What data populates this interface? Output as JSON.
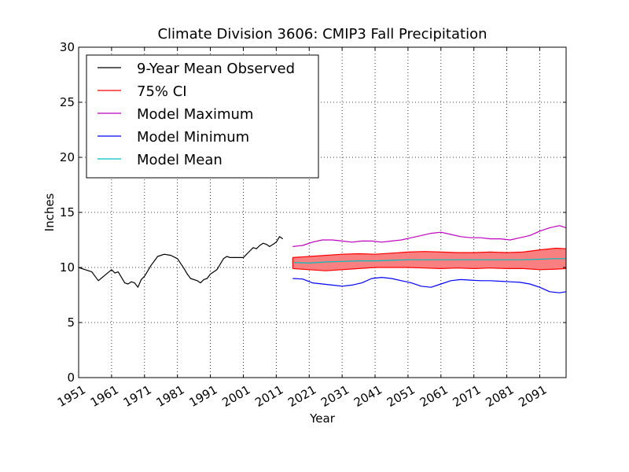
{
  "chart_data": {
    "type": "line",
    "title": "Climate Division 3606: CMIP3 Fall Precipitation",
    "xlabel": "Year",
    "ylabel": "Inches",
    "xlim": [
      1951,
      2099
    ],
    "ylim": [
      0,
      30
    ],
    "x_ticks": [
      1951,
      1961,
      1971,
      1981,
      1991,
      2001,
      2011,
      2021,
      2031,
      2041,
      2051,
      2061,
      2071,
      2081,
      2091
    ],
    "x_tick_labels": [
      "1951",
      "1961",
      "1971",
      "1981",
      "1991",
      "2001",
      "2011",
      "2021",
      "2031",
      "2041",
      "2051",
      "2061",
      "2071",
      "2081",
      "2091"
    ],
    "y_ticks": [
      0,
      5,
      10,
      15,
      20,
      25,
      30
    ],
    "y_tick_labels": [
      "0",
      "5",
      "10",
      "15",
      "20",
      "25",
      "30"
    ],
    "grid": true,
    "legend_position": "upper-left",
    "colors": {
      "observed": "#000000",
      "ci": "#ff0000",
      "ci_fill": "#f88080",
      "max": "#bf00bf",
      "min": "#0000ff",
      "mean": "#00bfbf"
    },
    "legend": [
      {
        "key": "observed",
        "label": "9-Year Mean Observed"
      },
      {
        "key": "ci",
        "label": "75% CI"
      },
      {
        "key": "max",
        "label": "Model Maximum"
      },
      {
        "key": "min",
        "label": "Model Minimum"
      },
      {
        "key": "mean",
        "label": "Model Mean"
      }
    ],
    "series": [
      {
        "key": "observed",
        "name": "9-Year Mean Observed",
        "x": [
          1951,
          1953,
          1955,
          1956,
          1957,
          1959,
          1961,
          1962,
          1963,
          1965,
          1966,
          1967,
          1968,
          1969,
          1970,
          1971,
          1973,
          1974,
          1975,
          1977,
          1979,
          1981,
          1983,
          1984,
          1985,
          1987,
          1988,
          1989,
          1990,
          1991,
          1992,
          1993,
          1994,
          1995,
          1996,
          1997,
          1999,
          2001,
          2003,
          2004,
          2005,
          2006,
          2007,
          2008,
          2009,
          2010,
          2011,
          2012,
          2013
        ],
        "y": [
          10.0,
          9.8,
          9.6,
          9.2,
          8.8,
          9.3,
          9.8,
          9.5,
          9.6,
          8.6,
          8.5,
          8.7,
          8.6,
          8.2,
          8.9,
          9.2,
          10.2,
          10.6,
          11.0,
          11.2,
          11.1,
          10.8,
          9.9,
          9.4,
          9.0,
          8.8,
          8.6,
          8.9,
          9.0,
          9.4,
          9.6,
          9.8,
          10.3,
          10.8,
          11.0,
          10.9,
          10.9,
          10.9,
          11.5,
          11.8,
          11.7,
          12.0,
          12.2,
          12.1,
          11.9,
          12.1,
          12.3,
          12.8,
          12.6
        ]
      },
      {
        "key": "ci_upper",
        "name": "75% CI",
        "x": [
          2016,
          2021,
          2026,
          2031,
          2036,
          2041,
          2046,
          2051,
          2056,
          2061,
          2066,
          2071,
          2076,
          2081,
          2086,
          2091,
          2096,
          2099
        ],
        "y": [
          10.9,
          11.0,
          11.1,
          11.2,
          11.25,
          11.2,
          11.3,
          11.4,
          11.45,
          11.4,
          11.35,
          11.35,
          11.4,
          11.35,
          11.4,
          11.6,
          11.75,
          11.7
        ]
      },
      {
        "key": "ci_lower",
        "name": "75% CI",
        "x": [
          2016,
          2021,
          2026,
          2031,
          2036,
          2041,
          2046,
          2051,
          2056,
          2061,
          2066,
          2071,
          2076,
          2081,
          2086,
          2091,
          2096,
          2099
        ],
        "y": [
          9.9,
          9.8,
          9.7,
          9.8,
          9.9,
          10.0,
          10.0,
          10.0,
          9.95,
          9.9,
          9.95,
          9.9,
          9.95,
          9.9,
          9.9,
          9.8,
          9.85,
          9.9
        ]
      },
      {
        "key": "max",
        "name": "Model Maximum",
        "x": [
          2016,
          2019,
          2022,
          2025,
          2028,
          2031,
          2034,
          2037,
          2040,
          2043,
          2046,
          2049,
          2052,
          2055,
          2058,
          2061,
          2064,
          2067,
          2070,
          2073,
          2076,
          2079,
          2082,
          2085,
          2088,
          2091,
          2094,
          2097,
          2099
        ],
        "y": [
          11.9,
          12.0,
          12.3,
          12.5,
          12.5,
          12.4,
          12.3,
          12.4,
          12.4,
          12.3,
          12.4,
          12.5,
          12.7,
          12.9,
          13.1,
          13.2,
          13.0,
          12.8,
          12.7,
          12.7,
          12.6,
          12.6,
          12.5,
          12.7,
          12.9,
          13.3,
          13.6,
          13.8,
          13.6
        ]
      },
      {
        "key": "min",
        "name": "Model Minimum",
        "x": [
          2016,
          2019,
          2022,
          2025,
          2028,
          2031,
          2034,
          2037,
          2040,
          2043,
          2046,
          2049,
          2052,
          2055,
          2058,
          2061,
          2064,
          2067,
          2070,
          2073,
          2076,
          2079,
          2082,
          2085,
          2088,
          2091,
          2094,
          2097,
          2099
        ],
        "y": [
          9.0,
          8.95,
          8.6,
          8.5,
          8.4,
          8.3,
          8.4,
          8.6,
          9.0,
          9.1,
          9.0,
          8.8,
          8.6,
          8.3,
          8.2,
          8.5,
          8.8,
          8.9,
          8.85,
          8.8,
          8.8,
          8.75,
          8.7,
          8.65,
          8.5,
          8.2,
          7.8,
          7.7,
          7.8
        ]
      },
      {
        "key": "mean",
        "name": "Model Mean",
        "x": [
          2016,
          2021,
          2026,
          2031,
          2036,
          2041,
          2046,
          2051,
          2056,
          2061,
          2066,
          2071,
          2076,
          2081,
          2086,
          2091,
          2096,
          2099
        ],
        "y": [
          10.45,
          10.4,
          10.5,
          10.55,
          10.6,
          10.6,
          10.65,
          10.7,
          10.7,
          10.7,
          10.7,
          10.7,
          10.7,
          10.7,
          10.7,
          10.75,
          10.8,
          10.8
        ]
      }
    ]
  }
}
